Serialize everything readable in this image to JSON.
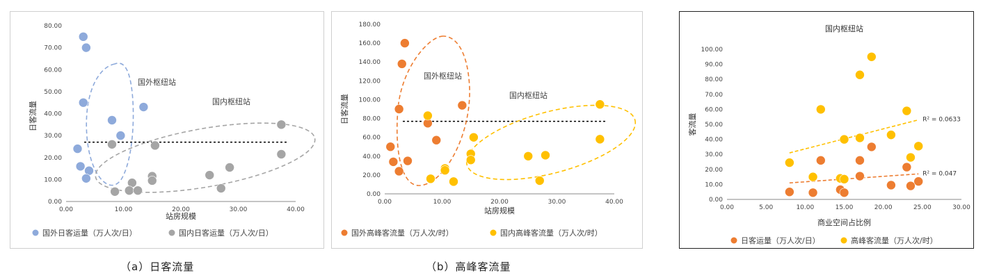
{
  "captions": [
    "（a）日客流量",
    "（b）高峰客流量"
  ],
  "colors": {
    "blue": "#8EAADB",
    "gray": "#A5A5A5",
    "orange": "#ED7D31",
    "gold": "#FFC000"
  },
  "chart_data": [
    {
      "type": "scatter",
      "title": "",
      "xlabel": "站房规模",
      "ylabel": "日客流量",
      "xlim": [
        0,
        40
      ],
      "ylim": [
        0,
        80
      ],
      "xticks": [
        "0.00",
        "10.00",
        "20.00",
        "30.00",
        "40.00"
      ],
      "yticks": [
        "0.00",
        "10.00",
        "20.00",
        "30.00",
        "40.00",
        "50.00",
        "60.00",
        "70.00",
        "80.00"
      ],
      "legend_position": "bottom",
      "reference_line_y": 27,
      "annotations": [
        "国外枢纽站",
        "国内枢纽站"
      ],
      "series": [
        {
          "name": "国外日客运量（万人次/日）",
          "color": "#8EAADB",
          "points": [
            [
              3.0,
              75
            ],
            [
              3.5,
              70
            ],
            [
              3.0,
              45
            ],
            [
              13.5,
              43
            ],
            [
              8.0,
              37
            ],
            [
              9.5,
              30
            ],
            [
              2.0,
              24
            ],
            [
              2.5,
              16
            ],
            [
              4.0,
              14
            ],
            [
              3.5,
              10.5
            ]
          ]
        },
        {
          "name": "国内日客运量（万人次/日）",
          "color": "#A5A5A5",
          "points": [
            [
              8.0,
              26
            ],
            [
              15.5,
              25.5
            ],
            [
              37.5,
              35
            ],
            [
              37.5,
              21.5
            ],
            [
              28.5,
              15.5
            ],
            [
              25.0,
              12
            ],
            [
              15.0,
              11.5
            ],
            [
              15.0,
              9.5
            ],
            [
              11.5,
              8.5
            ],
            [
              11.0,
              5
            ],
            [
              12.5,
              5
            ],
            [
              8.5,
              4.5
            ],
            [
              27.0,
              6
            ]
          ]
        }
      ]
    },
    {
      "type": "scatter",
      "title": "",
      "xlabel": "站房规模",
      "ylabel": "日客流量",
      "xlim": [
        0,
        40
      ],
      "ylim": [
        0,
        180
      ],
      "xticks": [
        "0.00",
        "10.00",
        "20.00",
        "30.00",
        "40.00"
      ],
      "yticks": [
        "0.00",
        "20.00",
        "40.00",
        "60.00",
        "80.00",
        "100.00",
        "120.00",
        "140.00",
        "160.00",
        "180.00"
      ],
      "legend_position": "bottom",
      "reference_line_y": 77,
      "annotations": [
        "国外枢纽站",
        "国内枢纽站"
      ],
      "series": [
        {
          "name": "国外高峰客流量（万人次/时）",
          "color": "#ED7D31",
          "points": [
            [
              3.5,
              160
            ],
            [
              3.0,
              138
            ],
            [
              13.5,
              94
            ],
            [
              2.5,
              90
            ],
            [
              7.5,
              75
            ],
            [
              9.0,
              57
            ],
            [
              1.0,
              50
            ],
            [
              1.5,
              34
            ],
            [
              4.0,
              35
            ],
            [
              2.5,
              24
            ]
          ]
        },
        {
          "name": "国内高峰客流量（万人次/时）",
          "color": "#FFC000",
          "points": [
            [
              7.5,
              83
            ],
            [
              37.5,
              95
            ],
            [
              15.5,
              60
            ],
            [
              37.5,
              58
            ],
            [
              15.0,
              42.5
            ],
            [
              15.0,
              36
            ],
            [
              25.0,
              40
            ],
            [
              28.0,
              41
            ],
            [
              10.5,
              27
            ],
            [
              10.5,
              25
            ],
            [
              8.0,
              16
            ],
            [
              12.0,
              13
            ],
            [
              27.0,
              14
            ]
          ]
        }
      ]
    },
    {
      "type": "scatter",
      "title": "国内枢纽站",
      "xlabel": "商业空间占比例",
      "ylabel": "客流量",
      "xlim": [
        0,
        30
      ],
      "ylim": [
        0,
        100
      ],
      "xticks": [
        "0.00",
        "5.00",
        "10.00",
        "15.00",
        "20.00",
        "25.00",
        "30.00"
      ],
      "yticks": [
        "0.00",
        "10.00",
        "20.00",
        "30.00",
        "40.00",
        "50.00",
        "60.00",
        "70.00",
        "80.00",
        "90.00",
        "100.00"
      ],
      "legend_position": "bottom",
      "series": [
        {
          "name": "日客运量（万人次/日）",
          "color": "#ED7D31",
          "points": [
            [
              8,
              5
            ],
            [
              11,
              4.5
            ],
            [
              12,
              26
            ],
            [
              14.5,
              6.5
            ],
            [
              15,
              4.5
            ],
            [
              17,
              26
            ],
            [
              17,
              15.5
            ],
            [
              18.5,
              35
            ],
            [
              21,
              9.5
            ],
            [
              23,
              21.5
            ],
            [
              23.5,
              9
            ],
            [
              24.5,
              12
            ]
          ],
          "trendline": {
            "from": [
              8,
              11
            ],
            "to": [
              24.5,
              17
            ],
            "r2_label": "R² = 0.047"
          }
        },
        {
          "name": "高峰客流量（万人次/时）",
          "color": "#FFC000",
          "points": [
            [
              8,
              24.5
            ],
            [
              11,
              15
            ],
            [
              12,
              60
            ],
            [
              14.5,
              14
            ],
            [
              15,
              40
            ],
            [
              15,
              13.5
            ],
            [
              17,
              83
            ],
            [
              17,
              41
            ],
            [
              18.5,
              95
            ],
            [
              21,
              43
            ],
            [
              23,
              59
            ],
            [
              23.5,
              28
            ],
            [
              24.5,
              35.5
            ]
          ],
          "trendline": {
            "from": [
              8,
              31
            ],
            "to": [
              24.5,
              53
            ],
            "r2_label": "R² = 0.0633"
          }
        }
      ]
    }
  ]
}
